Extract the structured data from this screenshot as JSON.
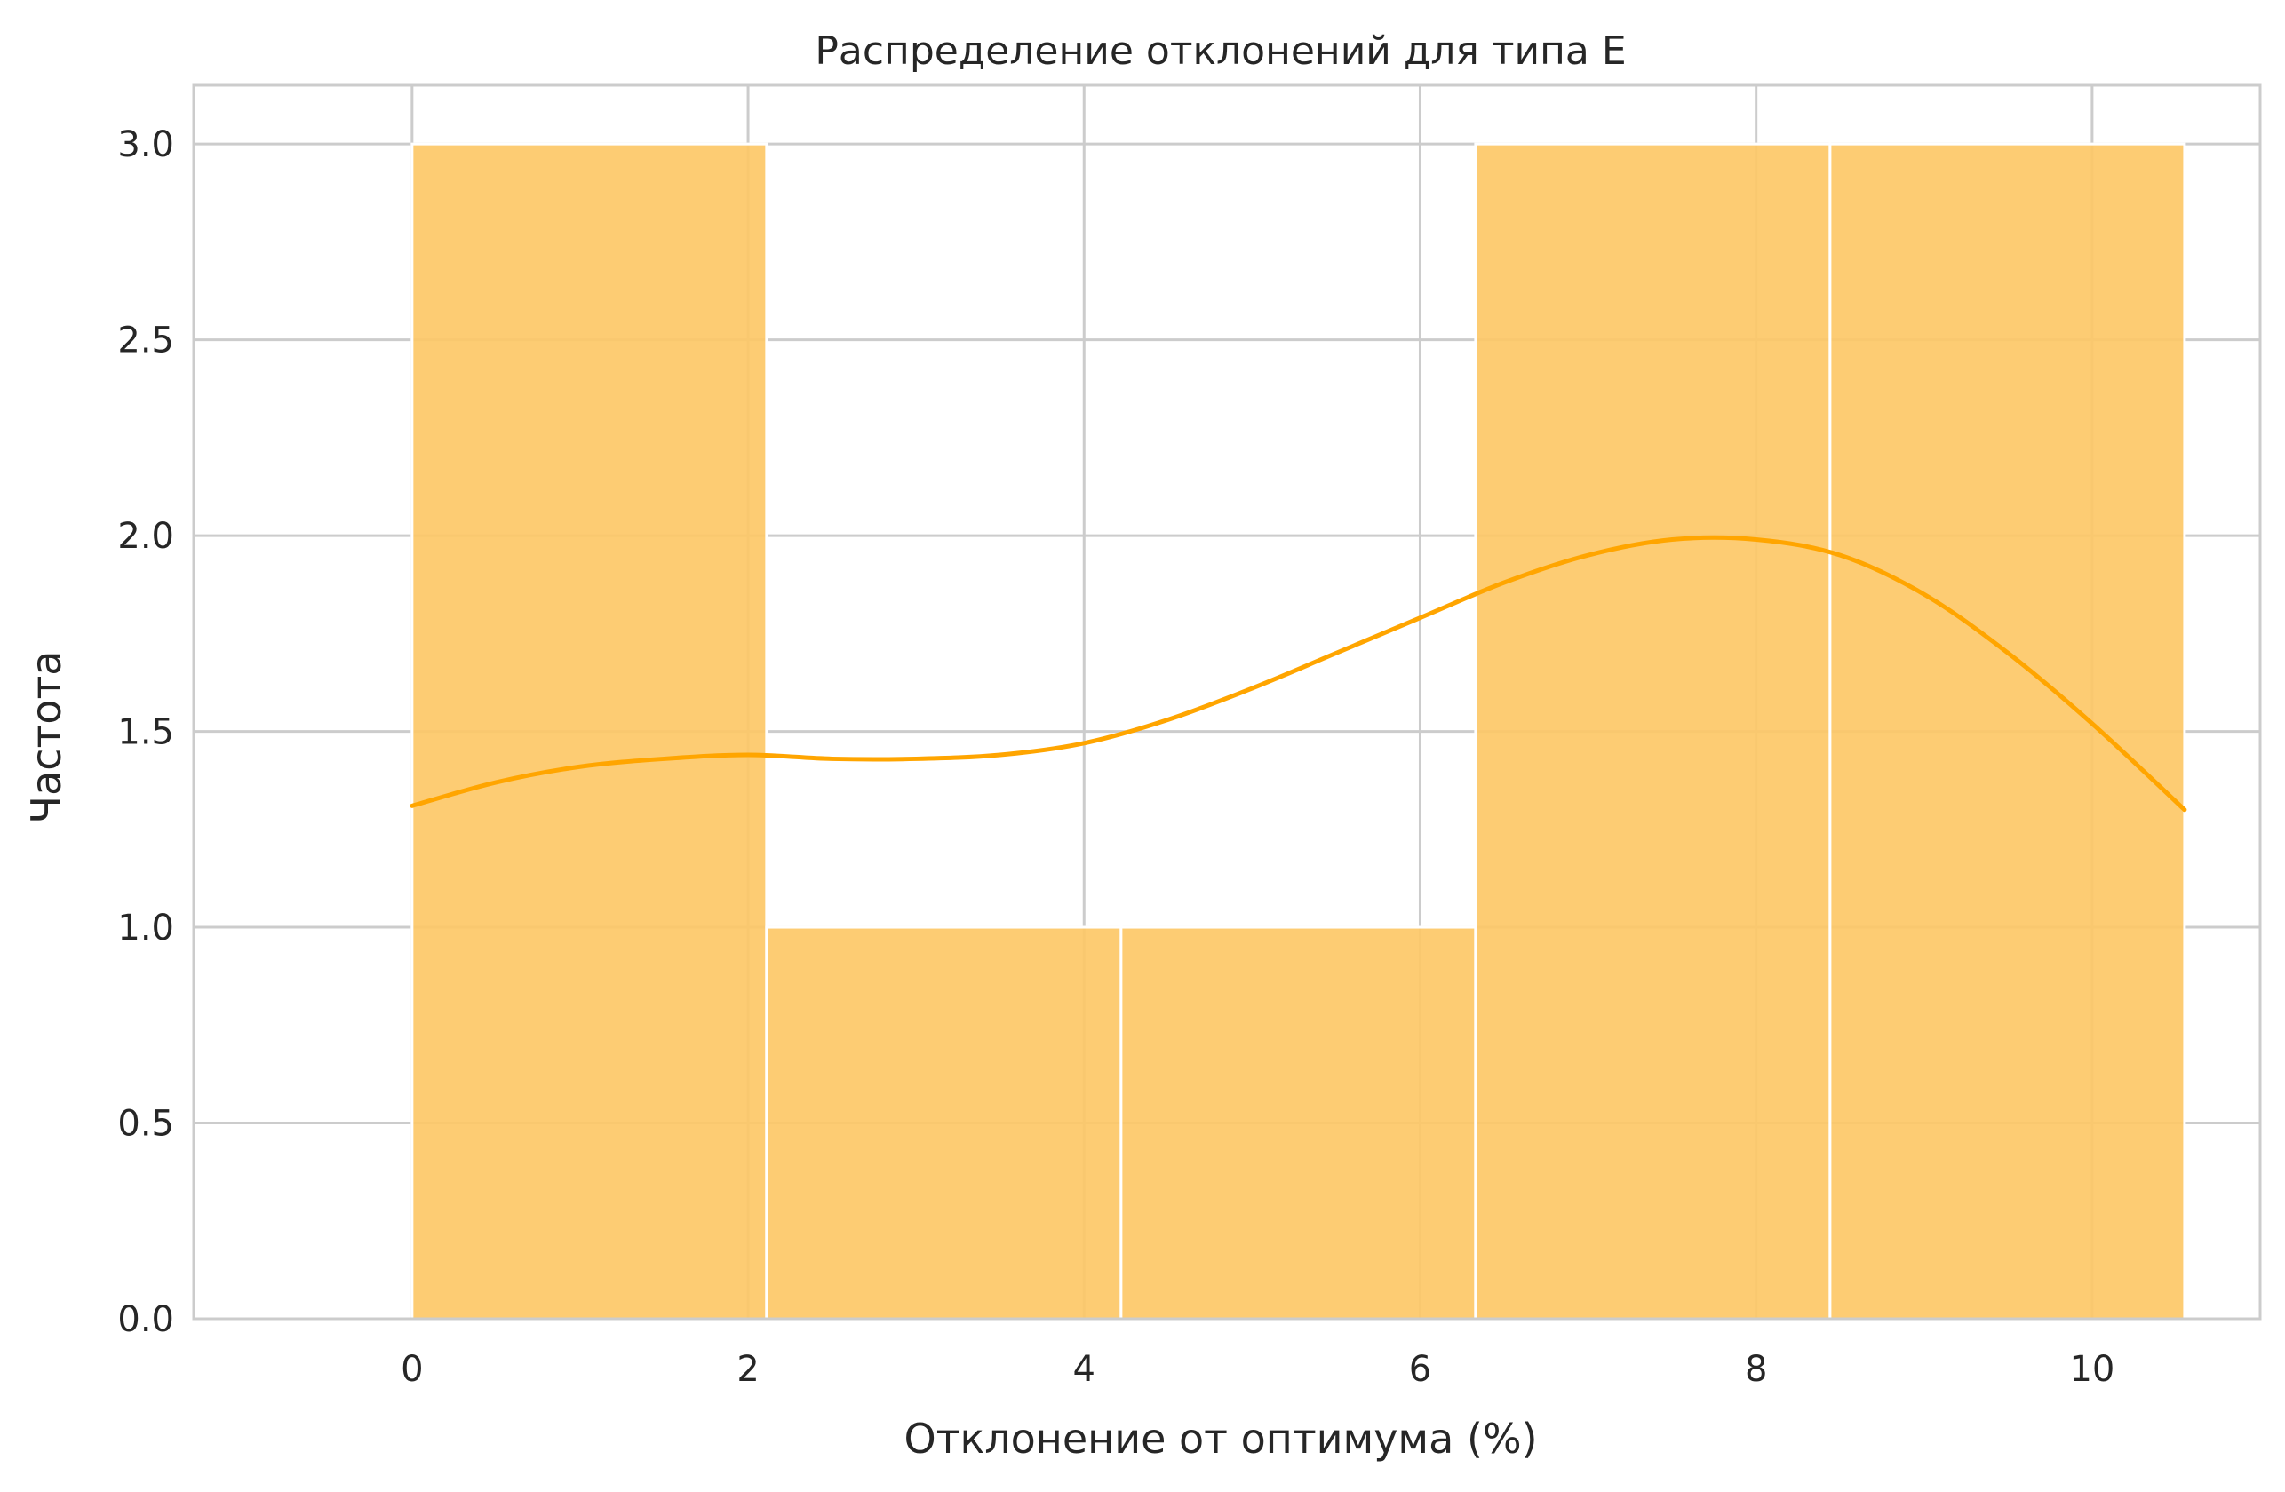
{
  "chart_data": {
    "type": "bar",
    "title": "Распределение отклонений для типа E",
    "xlabel": "Отклонение от оптимума (%)",
    "ylabel": "Частота",
    "xlim": [
      -1.3,
      11.0
    ],
    "ylim": [
      0,
      3.15
    ],
    "xticks": [
      0,
      2,
      4,
      6,
      8,
      10
    ],
    "xtick_labels": [
      "0",
      "2",
      "4",
      "6",
      "8",
      "10"
    ],
    "yticks": [
      0,
      0.5,
      1,
      1.5,
      2,
      2.5,
      3
    ],
    "ytick_labels": [
      "0.0",
      "0.5",
      "1.0",
      "1.5",
      "2.0",
      "2.5",
      "3.0"
    ],
    "grid": true,
    "bins": [
      {
        "start": 0.0,
        "end": 2.11,
        "count": 3
      },
      {
        "start": 2.11,
        "end": 4.22,
        "count": 1
      },
      {
        "start": 4.22,
        "end": 6.33,
        "count": 1
      },
      {
        "start": 6.33,
        "end": 8.44,
        "count": 3
      },
      {
        "start": 8.44,
        "end": 10.55,
        "count": 3
      }
    ],
    "kde": {
      "x": [
        0.0,
        0.5,
        1.0,
        1.5,
        2.0,
        2.5,
        3.0,
        3.5,
        4.0,
        4.5,
        5.0,
        5.5,
        6.0,
        6.5,
        7.0,
        7.5,
        8.0,
        8.5,
        9.0,
        9.5,
        10.0,
        10.55
      ],
      "y": [
        1.31,
        1.37,
        1.41,
        1.43,
        1.44,
        1.43,
        1.43,
        1.44,
        1.47,
        1.53,
        1.61,
        1.7,
        1.79,
        1.88,
        1.95,
        1.99,
        1.99,
        1.95,
        1.85,
        1.7,
        1.52,
        1.3
      ]
    },
    "colors": {
      "bar_fill": "#fdc867",
      "bar_edge": "#ffffff",
      "kde_line": "#ffa500",
      "grid": "#cccccc",
      "frame": "#cccccc"
    }
  }
}
